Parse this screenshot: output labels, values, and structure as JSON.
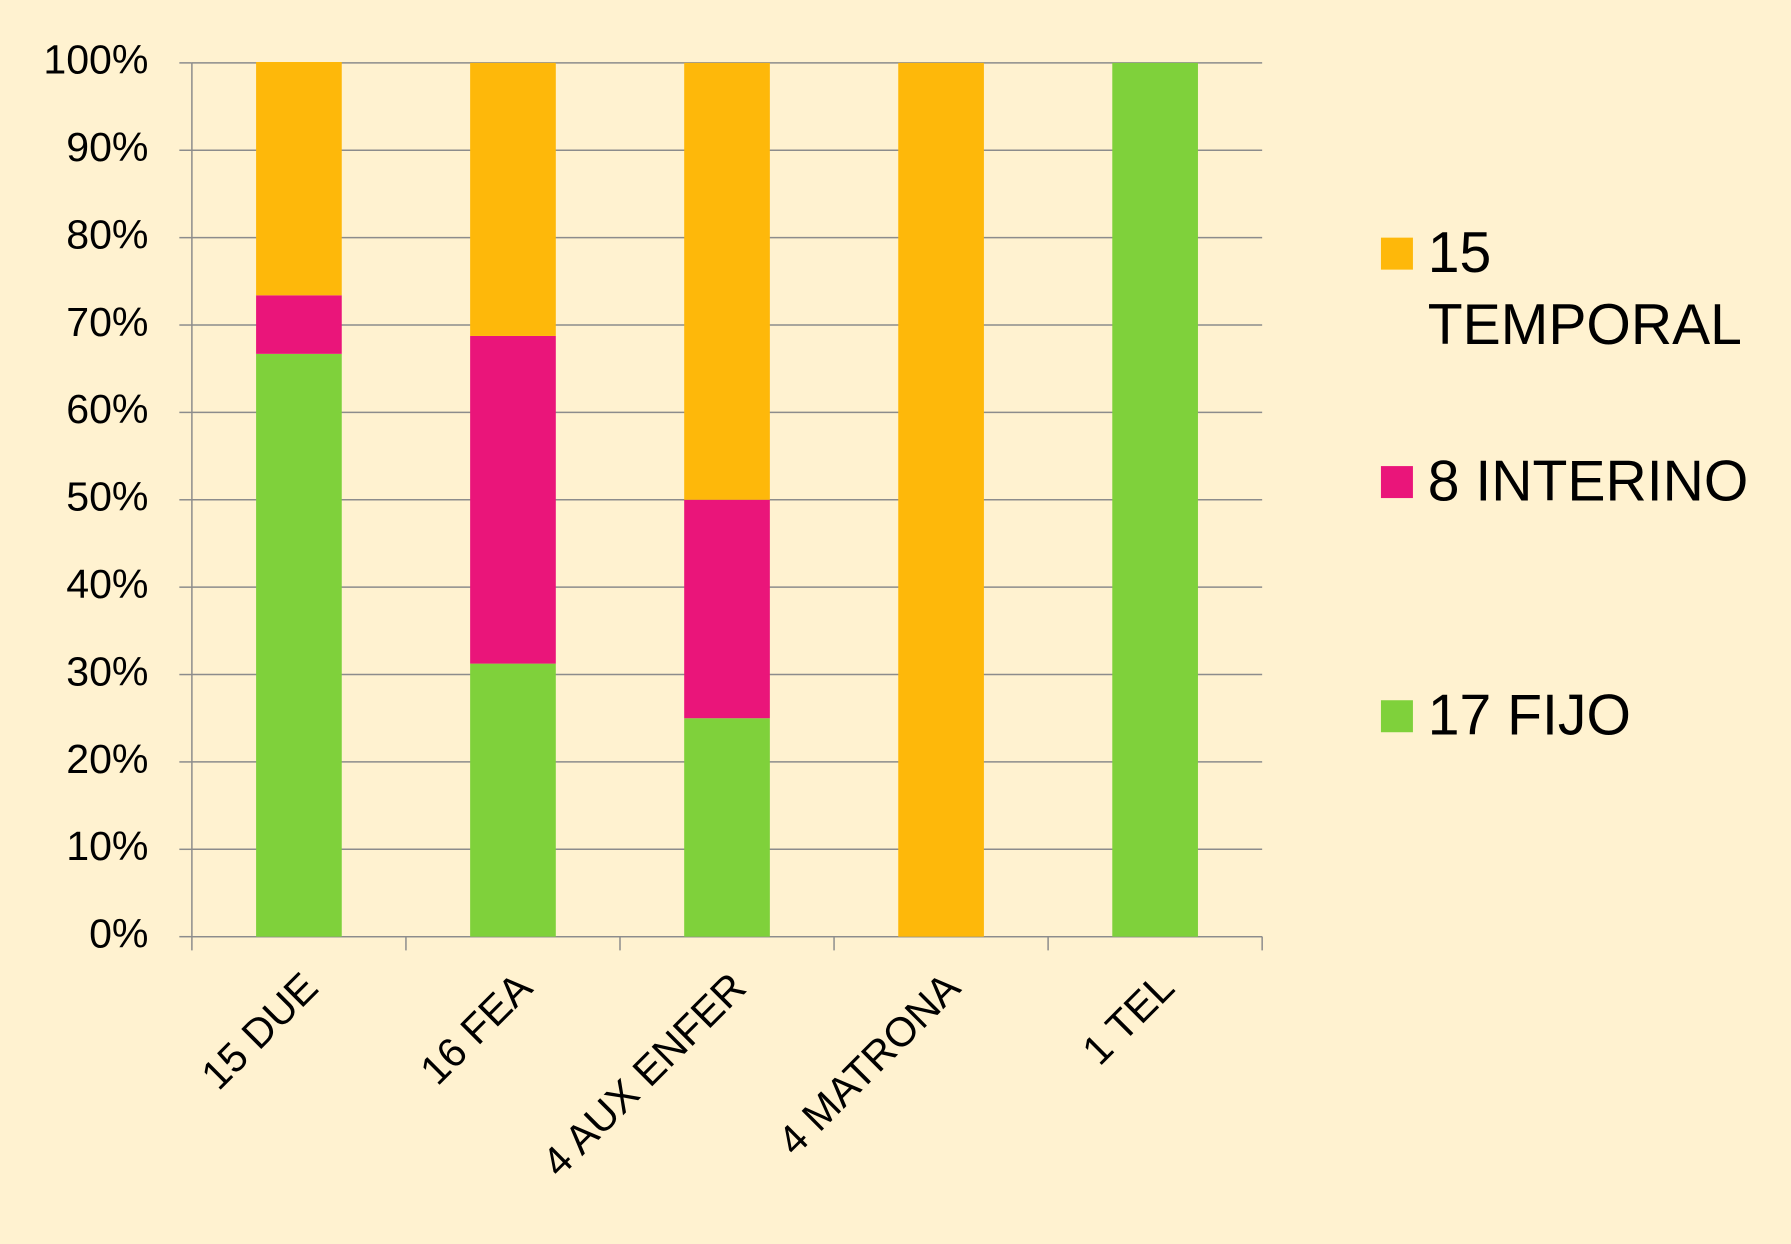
{
  "chart_data": {
    "type": "stacked-bar",
    "categories": [
      "15 DUE",
      "16 FEA",
      "4 AUX ENFER",
      "4 MATRONA",
      "1 TEL"
    ],
    "series": [
      {
        "name": "17 FIJO",
        "color": "#7fd13b",
        "values": [
          66.7,
          31.25,
          25,
          0,
          100
        ]
      },
      {
        "name": "8 INTERINO",
        "color": "#ea157a",
        "values": [
          6.7,
          37.5,
          25,
          0,
          0
        ]
      },
      {
        "name": "15 TEMPORAL",
        "color": "#feb80a",
        "values": [
          26.7,
          31.25,
          50,
          100,
          0
        ]
      }
    ],
    "ylim": [
      0,
      100
    ],
    "yticks": [
      {
        "value": 0,
        "label": "0%"
      },
      {
        "value": 10,
        "label": "10%"
      },
      {
        "value": 20,
        "label": "20%"
      },
      {
        "value": 30,
        "label": "30%"
      },
      {
        "value": 40,
        "label": "40%"
      },
      {
        "value": 50,
        "label": "50%"
      },
      {
        "value": 60,
        "label": "60%"
      },
      {
        "value": 70,
        "label": "70%"
      },
      {
        "value": 80,
        "label": "80%"
      },
      {
        "value": 90,
        "label": "90%"
      },
      {
        "value": 100,
        "label": "100%"
      }
    ],
    "grid": true,
    "legend": "right"
  }
}
